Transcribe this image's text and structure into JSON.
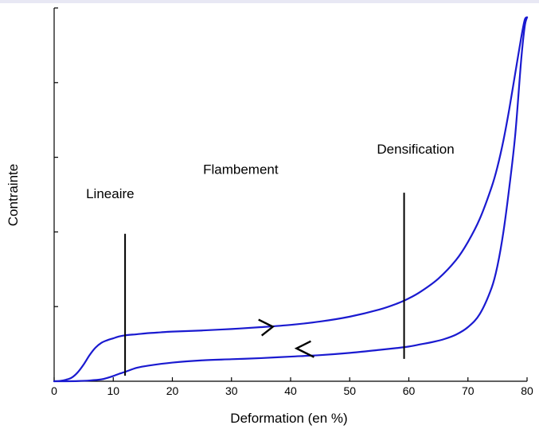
{
  "chart_data": {
    "type": "line",
    "title": "",
    "xlabel": "Deformation (en %)",
    "ylabel": "Contrainte",
    "xlim": [
      0,
      80
    ],
    "ylim": [
      0,
      100
    ],
    "x_ticks": [
      "0",
      "10",
      "20",
      "30",
      "40",
      "50",
      "60",
      "70",
      "80"
    ],
    "x_tick_values": [
      0,
      10,
      20,
      30,
      40,
      50,
      60,
      70,
      80
    ],
    "y_tick_values": [
      0,
      20,
      40,
      60,
      80,
      100
    ],
    "y_tick_labels_shown": false,
    "grid": false,
    "line_color": "#1a1ad0",
    "series": [
      {
        "x": [
          0,
          1,
          2,
          3,
          4,
          5,
          6,
          7,
          8,
          9,
          10,
          11,
          12,
          14,
          16,
          18,
          20,
          25,
          30,
          35,
          40,
          45,
          50,
          55,
          58,
          60,
          62,
          65,
          68,
          70,
          72,
          74,
          75,
          76,
          77,
          78,
          79,
          79.6,
          80
        ],
        "y": [
          0,
          0.1,
          0.4,
          1.0,
          2.4,
          4.5,
          7.0,
          9.0,
          10.3,
          11.0,
          11.5,
          12.0,
          12.3,
          12.6,
          12.9,
          13.1,
          13.3,
          13.6,
          14.0,
          14.5,
          15.1,
          16.0,
          17.3,
          19.2,
          20.8,
          22.2,
          24.0,
          27.5,
          32.5,
          37.3,
          43.5,
          52.0,
          57.5,
          64.5,
          73.0,
          82.5,
          92.0,
          96.8,
          97.5
        ]
      },
      {
        "x": [
          80,
          79.6,
          79,
          78,
          77,
          76,
          75,
          74,
          72,
          70,
          68,
          66,
          64,
          62,
          60,
          58,
          55,
          50,
          45,
          40,
          35,
          30,
          25,
          20,
          16,
          14,
          12,
          11,
          10,
          9,
          8,
          6,
          4,
          2,
          0
        ],
        "y": [
          97.5,
          95,
          86.0,
          66.0,
          52.0,
          40.0,
          31.0,
          25.0,
          18.0,
          14.5,
          12.5,
          11.3,
          10.5,
          9.9,
          9.3,
          8.9,
          8.4,
          7.6,
          7.0,
          6.6,
          6.2,
          5.9,
          5.6,
          5.0,
          4.2,
          3.6,
          2.5,
          2.0,
          1.4,
          0.9,
          0.5,
          0.2,
          0.05,
          0,
          0
        ]
      }
    ],
    "dividers": [
      {
        "x": 12,
        "y_from": 1.5,
        "y_to": 39.5
      },
      {
        "x": 59.2,
        "y_from": 6,
        "y_to": 50.5
      }
    ],
    "arrows": [
      {
        "direction": "right",
        "x": 37,
        "y": 14.6
      },
      {
        "direction": "left",
        "x": 41,
        "y": 8.8
      }
    ],
    "annotations": [
      {
        "text": "Lineaire",
        "x": 5.4,
        "y": 49
      },
      {
        "text": "Flambement",
        "x": 25.2,
        "y": 55.5
      },
      {
        "text": "Densification",
        "x": 54.6,
        "y": 61
      }
    ]
  }
}
